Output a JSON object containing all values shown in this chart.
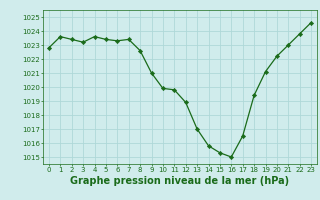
{
  "x": [
    0,
    1,
    2,
    3,
    4,
    5,
    6,
    7,
    8,
    9,
    10,
    11,
    12,
    13,
    14,
    15,
    16,
    17,
    18,
    19,
    20,
    21,
    22,
    23
  ],
  "y": [
    1022.8,
    1023.6,
    1023.4,
    1023.2,
    1023.6,
    1023.4,
    1023.3,
    1023.4,
    1022.6,
    1021.0,
    1019.9,
    1019.8,
    1018.9,
    1017.0,
    1015.8,
    1015.3,
    1015.0,
    1016.5,
    1019.4,
    1021.1,
    1022.2,
    1023.0,
    1023.8,
    1024.6
  ],
  "line_color": "#1a6b1a",
  "marker_color": "#1a6b1a",
  "bg_color": "#d0ecec",
  "grid_color": "#afd8d8",
  "xlabel": "Graphe pression niveau de la mer (hPa)",
  "xlabel_color": "#1a6b1a",
  "tick_color": "#1a6b1a",
  "ylim": [
    1014.5,
    1025.5
  ],
  "yticks": [
    1015,
    1016,
    1017,
    1018,
    1019,
    1020,
    1021,
    1022,
    1023,
    1024,
    1025
  ],
  "xticks": [
    0,
    1,
    2,
    3,
    4,
    5,
    6,
    7,
    8,
    9,
    10,
    11,
    12,
    13,
    14,
    15,
    16,
    17,
    18,
    19,
    20,
    21,
    22,
    23
  ],
  "tick_fontsize": 5.0,
  "xlabel_fontsize": 7.0,
  "xlim_left": -0.5,
  "xlim_right": 23.5
}
